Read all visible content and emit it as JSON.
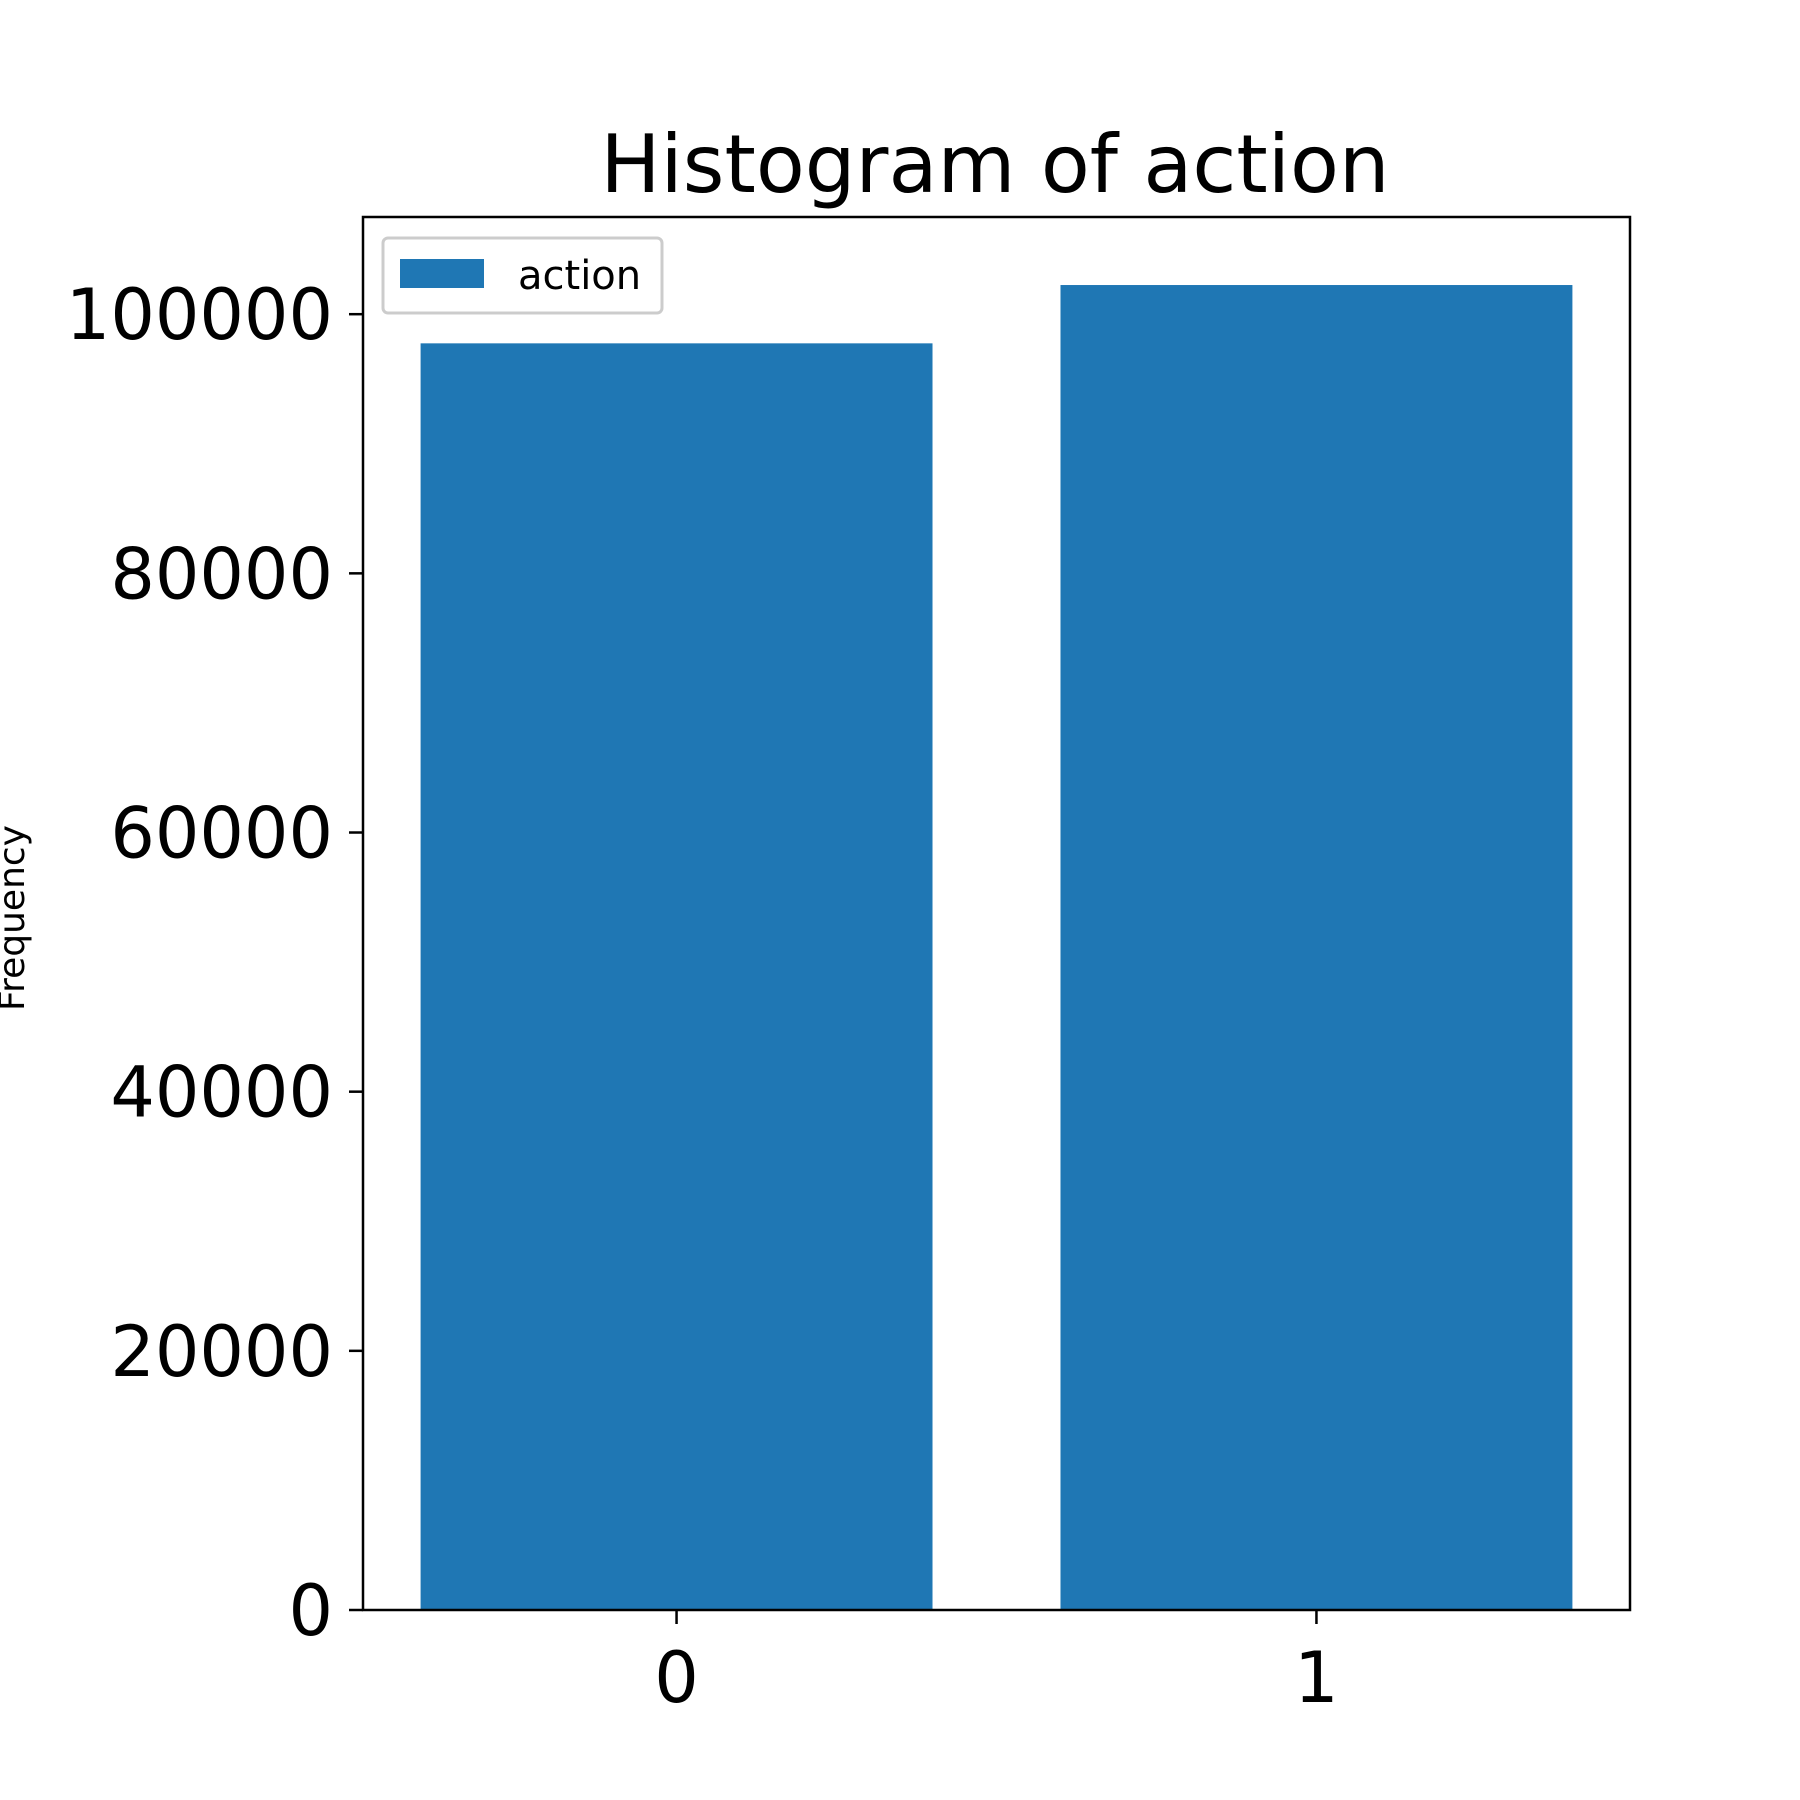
{
  "colors": {
    "bar": "#1f77b4",
    "axis": "#000000",
    "legend_border": "#cccccc",
    "background": "#ffffff"
  },
  "chart_data": {
    "type": "bar",
    "title": "Histogram of action",
    "xlabel": "",
    "ylabel": "Frequency",
    "categories": [
      "0",
      "1"
    ],
    "series": [
      {
        "name": "action",
        "values": [
          97750,
          102250
        ]
      }
    ],
    "ylim": [
      0,
      107500
    ],
    "yticks": [
      0,
      20000,
      40000,
      60000,
      80000,
      100000
    ],
    "grid": false,
    "legend": "top-left"
  }
}
